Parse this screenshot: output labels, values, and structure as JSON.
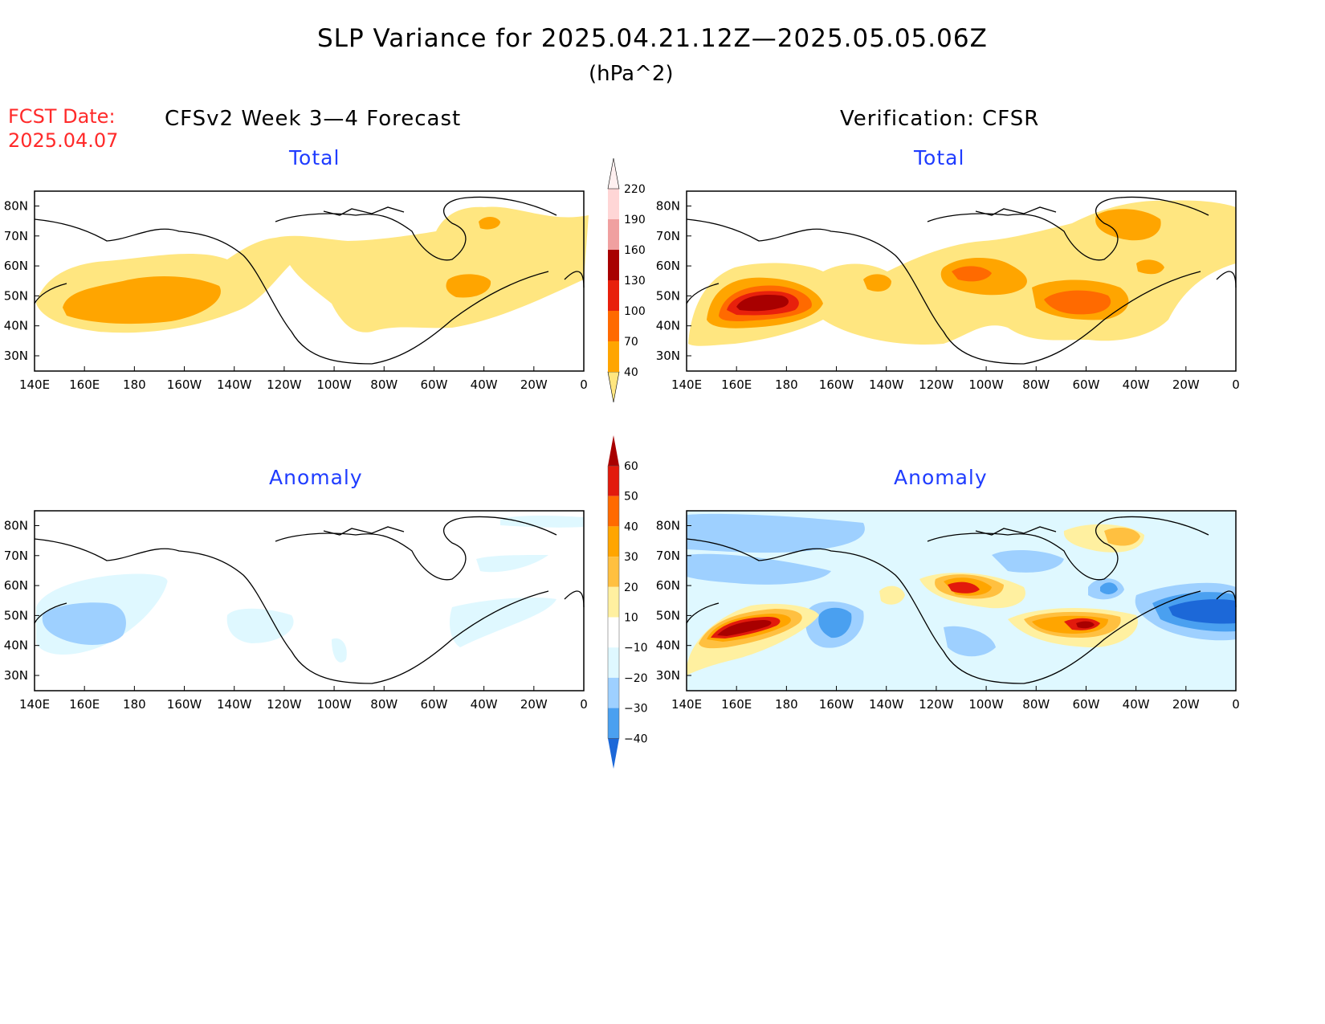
{
  "header": {
    "title": "SLP Variance for 2025.04.21.12Z—2025.05.05.06Z",
    "units": "(hPa^2)",
    "fcst_date_label": "FCST Date:",
    "fcst_date_value": "2025.04.07",
    "left_heading": "CFSv2 Week 3—4 Forecast",
    "right_heading": "Verification: CFSR"
  },
  "panels": {
    "fc_total_title": "Total",
    "ver_total_title": "Total",
    "fc_anom_title": "Anomaly",
    "ver_anom_title": "Anomaly"
  },
  "axes": {
    "lon_labels": [
      "140E",
      "160E",
      "180",
      "160W",
      "140W",
      "120W",
      "100W",
      "80W",
      "60W",
      "40W",
      "20W",
      "0"
    ],
    "lat_labels": [
      "80N",
      "70N",
      "60N",
      "50N",
      "40N",
      "30N"
    ]
  },
  "colorbars": {
    "total": {
      "labels": [
        "40",
        "70",
        "100",
        "130",
        "160",
        "190",
        "220"
      ],
      "colors": [
        "#ffe680",
        "#ffa500",
        "#ff6a00",
        "#e8200c",
        "#a80000",
        "#f0a0a0",
        "#ffd6d6",
        "#fff0f0"
      ]
    },
    "anomaly": {
      "labels": [
        "60",
        "50",
        "40",
        "30",
        "20",
        "10",
        "−10",
        "−20",
        "−30",
        "−40"
      ],
      "colors": [
        "#a80000",
        "#e21a0c",
        "#ff6a00",
        "#ffa500",
        "#ffc040",
        "#fff0a0",
        "#ffffff",
        "#dff8ff",
        "#9ed0ff",
        "#4aa0f0",
        "#1c68d8"
      ]
    }
  },
  "palette": {
    "total_c1": "#ffe680",
    "total_c2": "#ffa500",
    "total_c3": "#ff6a00",
    "total_c4": "#e8200c",
    "total_c5": "#a80000",
    "anom_pos1": "#fff0a0",
    "anom_pos2": "#ffc040",
    "anom_pos3": "#ffa500",
    "anom_pos4": "#ff6a00",
    "anom_pos5": "#e21a0c",
    "anom_pos6": "#a80000",
    "anom_neg1": "#dff8ff",
    "anom_neg2": "#9ed0ff",
    "anom_neg3": "#4aa0f0",
    "anom_neg4": "#1c68d8"
  }
}
